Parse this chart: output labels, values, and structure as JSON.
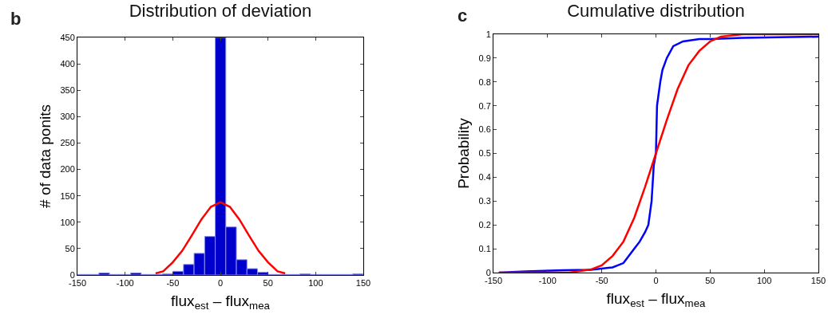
{
  "chart_data": [
    {
      "type": "histogram",
      "title": "Distribution of deviation",
      "xlabel": "flux$_{est}$ – flux$_{mea}$",
      "ylabel": "# of data ponits",
      "annotations": [
        "b"
      ],
      "bins": [
        -149.7,
        -138.6,
        -127.5,
        -116.4,
        -105.3,
        -94.2,
        -83.1,
        -72,
        -60.9,
        -49.8,
        -38.7,
        -27.6,
        -16.5,
        -5.4,
        5.7,
        16.8,
        27.9,
        39,
        50.1,
        61.2,
        72.3,
        83.4,
        94.5,
        105.6,
        116.7,
        127.8,
        138.9,
        150
      ],
      "series": [
        {
          "color": "#0000cc",
          "values": [
            1,
            1,
            4,
            1,
            1,
            4,
            1,
            1,
            2,
            7,
            20,
            41,
            73,
            450,
            91,
            29,
            12,
            5,
            1,
            1,
            1,
            2,
            1,
            1,
            1,
            1,
            2
          ]
        },
        {
          "type": "line",
          "color": "#ff0000",
          "x": [
            -68,
            -60,
            -50,
            -40,
            -30,
            -20,
            -10,
            0,
            10,
            20,
            30,
            40,
            50,
            60,
            68
          ],
          "values": [
            3,
            7,
            24,
            46,
            75,
            105,
            129,
            138,
            129,
            105,
            75,
            46,
            24,
            7,
            3
          ]
        }
      ],
      "xlim": [
        -150,
        150
      ],
      "xticks": [
        -150,
        -100,
        -50,
        0,
        50,
        100,
        150
      ],
      "ylim": [
        0,
        450
      ],
      "yticks": [
        0,
        50,
        100,
        150,
        200,
        250,
        300,
        350,
        400,
        450
      ],
      "grid": false,
      "line_style": "solid",
      "marker": "none"
    },
    {
      "type": "line",
      "title": "Cumulative distribution",
      "xlabel": "flux$_{est}$ – flux$_{mea}$",
      "ylabel": "Probability",
      "annotations": [
        "c"
      ],
      "series": [
        {
          "color": "#0000ff",
          "x": [
            -145,
            -120,
            -85,
            -60,
            -50,
            -40,
            -30,
            -25,
            -20,
            -15,
            -10,
            -7,
            -4,
            -2,
            0,
            1,
            4,
            6,
            10,
            16,
            25,
            40,
            50,
            80,
            150
          ],
          "values": [
            0,
            0.005,
            0.01,
            0.012,
            0.017,
            0.022,
            0.04,
            0.07,
            0.1,
            0.13,
            0.17,
            0.2,
            0.3,
            0.45,
            0.5,
            0.7,
            0.8,
            0.85,
            0.9,
            0.95,
            0.97,
            0.98,
            0.98,
            0.985,
            0.99
          ]
        },
        {
          "color": "#ff0000",
          "x": [
            -145,
            -80,
            -60,
            -50,
            -40,
            -30,
            -20,
            -10,
            0,
            10,
            20,
            30,
            40,
            50,
            60,
            80,
            150
          ],
          "values": [
            0,
            0,
            0.013,
            0.03,
            0.07,
            0.13,
            0.23,
            0.36,
            0.5,
            0.64,
            0.77,
            0.87,
            0.93,
            0.97,
            0.99,
            1,
            1
          ]
        }
      ],
      "xlim": [
        -150,
        150
      ],
      "xticks": [
        -150,
        -100,
        -50,
        0,
        50,
        100,
        150
      ],
      "ylim": [
        0,
        1
      ],
      "yticks": [
        0,
        0.1,
        0.2,
        0.3,
        0.4,
        0.5,
        0.6,
        0.7,
        0.8,
        0.9,
        1
      ],
      "grid": false,
      "line_style": "solid",
      "marker": "none"
    }
  ]
}
